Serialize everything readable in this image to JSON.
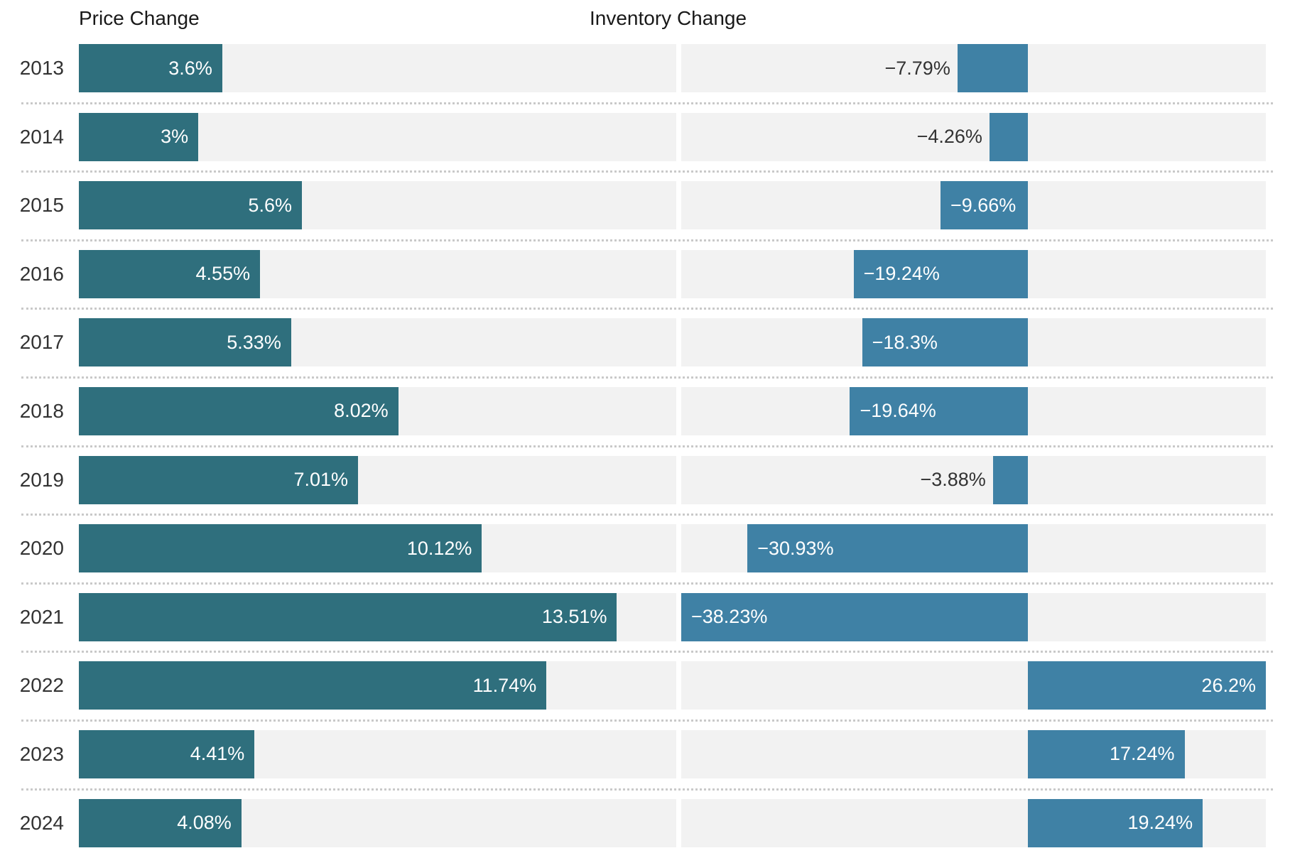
{
  "columns": {
    "price_header": "Price Change",
    "inventory_header": "Inventory Change"
  },
  "chart_data": {
    "type": "bar",
    "orientation": "horizontal",
    "title": "",
    "categories": [
      "2013",
      "2014",
      "2015",
      "2016",
      "2017",
      "2018",
      "2019",
      "2020",
      "2021",
      "2022",
      "2023",
      "2024"
    ],
    "series": [
      {
        "name": "Price Change",
        "values": [
          3.6,
          3,
          5.6,
          4.55,
          5.33,
          8.02,
          7.01,
          10.12,
          13.51,
          11.74,
          4.41,
          4.08
        ],
        "labels": [
          "3.6%",
          "3%",
          "5.6%",
          "4.55%",
          "5.33%",
          "8.02%",
          "7.01%",
          "10.12%",
          "13.51%",
          "11.74%",
          "4.41%",
          "4.08%"
        ],
        "axis_range": [
          0,
          15
        ],
        "bar_color": "#2f6f7d"
      },
      {
        "name": "Inventory Change",
        "values": [
          -7.79,
          -4.26,
          -9.66,
          -19.24,
          -18.3,
          -19.64,
          -3.88,
          -30.93,
          -38.23,
          26.2,
          17.24,
          19.24
        ],
        "labels": [
          "−7.79%",
          "−4.26%",
          "−9.66%",
          "−19.24%",
          "−18.3%",
          "−19.64%",
          "−3.88%",
          "−30.93%",
          "−38.23%",
          "26.2%",
          "17.24%",
          "19.24%"
        ],
        "axis_range": [
          -38.23,
          26.2
        ],
        "bar_color": "#3f81a5"
      }
    ],
    "layout": {
      "grid": "off",
      "legend": "none",
      "track_color": "#f2f2f2",
      "separator_color": "#c9c9c9",
      "inside_label_color": "#ffffff",
      "outside_label_color": "#333333"
    }
  }
}
